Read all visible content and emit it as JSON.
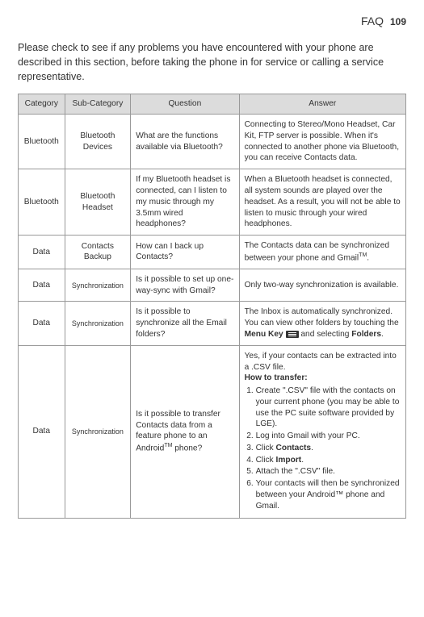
{
  "header": {
    "title": "FAQ",
    "page_number": "109"
  },
  "intro": "Please check to see if any problems you have encountered with your phone are described in this section, before taking the phone in for service or calling a service representative.",
  "table": {
    "headers": [
      "Category",
      "Sub-Category",
      "Question",
      "Answer"
    ],
    "rows": [
      {
        "cat": "Bluetooth",
        "sub": "Bluetooth Devices",
        "q": "What are the functions available via Bluetooth?",
        "a_plain": "Connecting to Stereo/Mono Headset, Car Kit, FTP server is possible. When it's connected to another phone via Bluetooth, you can receive Contacts data."
      },
      {
        "cat": "Bluetooth",
        "sub": "Bluetooth Headset",
        "q": "If my Bluetooth headset is connected, can I listen to my music through my 3.5mm wired headphones?",
        "a_plain": "When a Bluetooth headset is connected, all system sounds are played over the headset. As a result, you will not be able to listen to music through your wired headphones."
      },
      {
        "cat": "Data",
        "sub": "Contacts Backup",
        "q": "How can I back up Contacts?",
        "a_gmail_tm": {
          "pre": "The Contacts data can be synchronized between your phone and Gmail",
          "post": "."
        }
      },
      {
        "cat": "Data",
        "sub": "Synchronization",
        "sub_small": true,
        "q": "Is it possible to set up one-way-sync with Gmail?",
        "a_plain": "Only two-way synchronization is available."
      },
      {
        "cat": "Data",
        "sub": "Synchronization",
        "sub_small": true,
        "q": "Is it possible to synchronize all the Email folders?",
        "a_menukey": {
          "pre": "The Inbox is automatically synchronized. You can view other folders by touching the ",
          "bold1": "Menu Key",
          "mid": " ",
          "post1": " and selecting ",
          "bold2": "Folders",
          "post2": "."
        }
      },
      {
        "cat": "Data",
        "sub": "Synchronization",
        "sub_small": true,
        "q_android_tm": {
          "pre": "Is it possible to transfer Contacts data from a feature phone to an Android",
          "post": " phone?"
        },
        "a_transfer": {
          "lead": "Yes, if your contacts can be extracted into a .CSV file.",
          "how": "How to transfer:",
          "steps": [
            "Create \".CSV\" file with the contacts on your current phone (you may be able to use the PC suite software provided by LGE).",
            "Log into Gmail with your PC.",
            {
              "pre": "Click ",
              "bold": "Contacts",
              "post": "."
            },
            {
              "pre": "Click ",
              "bold": "Import",
              "post": "."
            },
            "Attach the \".CSV\" file.",
            "Your contacts will then be synchronized between your Android™ phone and Gmail."
          ]
        }
      }
    ]
  }
}
